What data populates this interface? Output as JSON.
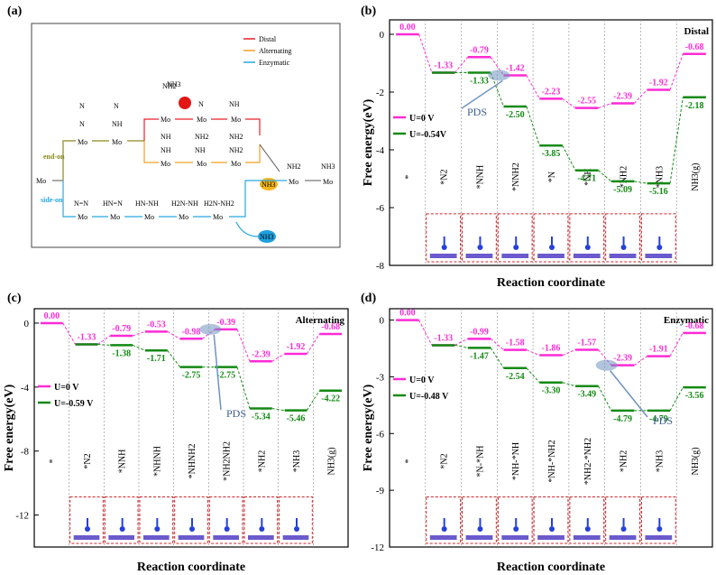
{
  "colors": {
    "u0": "#ff2bd6",
    "u1": "#138a13",
    "distal": "#e8202a",
    "alternating": "#f0a020",
    "enzymatic": "#29a8e0",
    "endon": "#8a8a1a",
    "frame": "#d0242a",
    "pds": "#6f93c0"
  },
  "scheme": {
    "label": "(a)",
    "legend": [
      "Distal",
      "Alternating",
      "Enzymatic"
    ],
    "end_on": "end-on",
    "side_on": "side-on",
    "nh3": "NH3",
    "mo": "Mo",
    "species": [
      "N",
      "N",
      "N",
      "NH",
      "NH2",
      "NH",
      "NH",
      "NH",
      "NH2",
      "NH2",
      "NH2",
      "NH2",
      "NH2",
      "NH3",
      "N=N",
      "HN=N",
      "HN-NH",
      "H2N-NH",
      "H2N-NH2"
    ]
  },
  "chart_data": [
    {
      "type": "line",
      "panel": "(b)",
      "corner_label": "Distal",
      "xlabel": "Reaction coordinate",
      "ylabel": "Free energy(eV)",
      "ylim": [
        -8,
        0.5
      ],
      "yticks": [
        0,
        -2,
        -4,
        -6,
        -8
      ],
      "categories": [
        "*",
        "*N2",
        "*NNH",
        "*NNH2",
        "*N",
        "*NH",
        "*NH2",
        "*NH3",
        "NH3(g)"
      ],
      "series": [
        {
          "name": "U=0 V",
          "values": [
            0.0,
            -1.33,
            -0.79,
            -1.42,
            -2.23,
            -2.55,
            -2.39,
            -1.92,
            -0.68
          ],
          "labels": [
            "0.00",
            "-1.33",
            "-0.79",
            "-1.42",
            "-2.23",
            "-2.55",
            "-2.39",
            "-1.92",
            "-0.68"
          ]
        },
        {
          "name": "U=-0.54V",
          "values": [
            null,
            -1.33,
            -1.33,
            -2.5,
            -3.85,
            -4.71,
            -5.09,
            -5.16,
            -2.18
          ],
          "labels": [
            "",
            "",
            "-1.33",
            "-2.50",
            "-3.85",
            "-4.71",
            "-5.09",
            "-5.16",
            "-2.18"
          ]
        }
      ],
      "pds_label": "PDS"
    },
    {
      "type": "line",
      "panel": "(c)",
      "corner_label": "Alternating",
      "xlabel": "Reaction coordinate",
      "ylabel": "Free energy(eV)",
      "ylim": [
        -14,
        0.9
      ],
      "yticks": [
        0,
        -4,
        -8,
        -12
      ],
      "categories": [
        "*",
        "*N2",
        "*NNH",
        "*NHNH",
        "*NHNH2",
        "*NH2NH2",
        "*NH2",
        "*NH3",
        "NH3(g)"
      ],
      "series": [
        {
          "name": "U=0 V",
          "values": [
            0.0,
            -1.33,
            -0.79,
            -0.53,
            -0.98,
            -0.39,
            -2.39,
            -1.92,
            -0.68
          ],
          "labels": [
            "0.00",
            "-1.33",
            "-0.79",
            "-0.53",
            "-0.98",
            "-0.39",
            "-2.39",
            "-1.92",
            "-0.68"
          ]
        },
        {
          "name": "U=-0.59 V",
          "values": [
            null,
            -1.33,
            -1.38,
            -1.71,
            -2.75,
            -2.75,
            -5.34,
            -5.46,
            -4.22
          ],
          "labels": [
            "",
            "",
            "-1.38",
            "-1.71",
            "-2.75",
            "-2.75",
            "-5.34",
            "-5.46",
            "-4.22"
          ]
        }
      ],
      "pds_label": "PDS"
    },
    {
      "type": "line",
      "panel": "(d)",
      "corner_label": "Enzymatic",
      "xlabel": "Reaction coordinate",
      "ylabel": "Free energy(eV)",
      "ylim": [
        -12,
        0.6
      ],
      "yticks": [
        0,
        -3,
        -6,
        -9,
        -12
      ],
      "categories": [
        "*",
        "*N2",
        "*N-*NH",
        "*NH-*NH",
        "*NH-*NH2",
        "*NH2-*NH2",
        "*NH2",
        "*NH3",
        "NH3(g)"
      ],
      "series": [
        {
          "name": "U=0 V",
          "values": [
            0.0,
            -1.33,
            -0.99,
            -1.58,
            -1.86,
            -1.57,
            -2.39,
            -1.91,
            -0.68
          ],
          "labels": [
            "0.00",
            "-1.33",
            "-0.99",
            "-1.58",
            "-1.86",
            "-1.57",
            "-2.39",
            "-1.91",
            "-0.68"
          ]
        },
        {
          "name": "U=-0.48 V",
          "values": [
            null,
            -1.33,
            -1.47,
            -2.54,
            -3.3,
            -3.49,
            -4.79,
            -4.79,
            -3.56
          ],
          "labels": [
            "",
            "",
            "-1.47",
            "-2.54",
            "-3.30",
            "-3.49",
            "-4.79",
            "-4.79",
            "-3.56"
          ]
        }
      ],
      "pds_label": "PDS"
    }
  ]
}
